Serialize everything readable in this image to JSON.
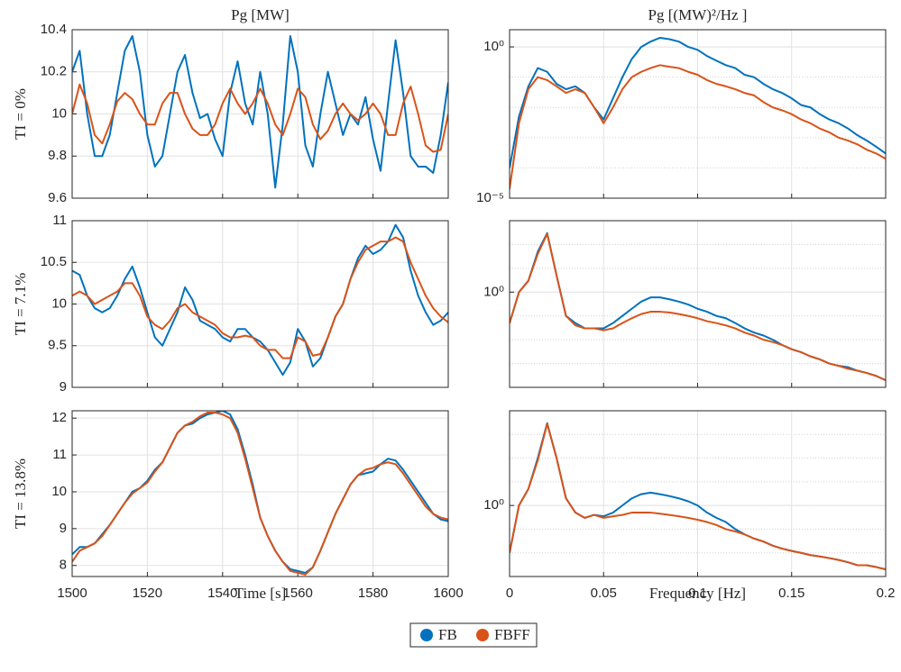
{
  "chart_data": [
    {
      "type": "line",
      "title": "Pg [MW]",
      "ylabel": "TI = 0%",
      "grid": true,
      "x": [
        1500,
        1502,
        1504,
        1506,
        1508,
        1510,
        1512,
        1514,
        1516,
        1518,
        1520,
        1522,
        1524,
        1526,
        1528,
        1530,
        1532,
        1534,
        1536,
        1538,
        1540,
        1542,
        1544,
        1546,
        1548,
        1550,
        1552,
        1554,
        1556,
        1558,
        1560,
        1562,
        1564,
        1566,
        1568,
        1570,
        1572,
        1574,
        1576,
        1578,
        1580,
        1582,
        1584,
        1586,
        1588,
        1590,
        1592,
        1594,
        1596,
        1598,
        1600
      ],
      "xlim": [
        1500,
        1600
      ],
      "xticks": [
        1500,
        1520,
        1540,
        1560,
        1580,
        1600
      ],
      "show_xtick_labels": false,
      "ylim": [
        9.6,
        10.4
      ],
      "yticks": [
        9.6,
        9.8,
        10,
        10.2,
        10.4
      ],
      "series": [
        {
          "color": "#0072bd",
          "values": [
            10.2,
            10.3,
            10.0,
            9.8,
            9.8,
            9.9,
            10.1,
            10.3,
            10.37,
            10.2,
            9.9,
            9.75,
            9.8,
            10.0,
            10.2,
            10.28,
            10.1,
            9.98,
            10.0,
            9.88,
            9.8,
            10.1,
            10.25,
            10.05,
            9.95,
            10.2,
            10.0,
            9.65,
            9.95,
            10.37,
            10.2,
            9.85,
            9.75,
            10.0,
            10.2,
            10.05,
            9.9,
            10.0,
            9.95,
            10.08,
            9.88,
            9.73,
            10.05,
            10.35,
            10.1,
            9.8,
            9.75,
            9.75,
            9.72,
            9.9,
            10.15
          ]
        },
        {
          "color": "#d95319",
          "values": [
            10.0,
            10.14,
            10.05,
            9.9,
            9.86,
            9.95,
            10.06,
            10.1,
            10.07,
            10.0,
            9.95,
            9.95,
            10.05,
            10.1,
            10.1,
            10.0,
            9.93,
            9.9,
            9.9,
            9.95,
            10.05,
            10.12,
            10.05,
            10.0,
            10.05,
            10.12,
            10.05,
            9.95,
            9.9,
            10.0,
            10.12,
            10.08,
            9.95,
            9.88,
            9.92,
            10.0,
            10.05,
            10.0,
            9.97,
            10.0,
            10.05,
            10.0,
            9.9,
            9.9,
            10.05,
            10.13,
            10.0,
            9.85,
            9.82,
            9.83,
            10.0
          ]
        }
      ]
    },
    {
      "type": "line",
      "title": "Pg [(MW)²/Hz ]",
      "yscale": "log",
      "grid": true,
      "minor_grid": true,
      "x": [
        0,
        0.005,
        0.01,
        0.015,
        0.02,
        0.025,
        0.03,
        0.035,
        0.04,
        0.045,
        0.05,
        0.055,
        0.06,
        0.065,
        0.07,
        0.075,
        0.08,
        0.085,
        0.09,
        0.095,
        0.1,
        0.105,
        0.11,
        0.115,
        0.12,
        0.125,
        0.13,
        0.135,
        0.14,
        0.145,
        0.15,
        0.155,
        0.16,
        0.165,
        0.17,
        0.175,
        0.18,
        0.185,
        0.19,
        0.195,
        0.2
      ],
      "xlim": [
        0,
        0.2
      ],
      "xticks": [
        0,
        0.05,
        0.1,
        0.15,
        0.2
      ],
      "show_xtick_labels": false,
      "ylim": [
        1e-05,
        3.7
      ],
      "yticks": [
        {
          "value": 1e-05,
          "label": "10⁻⁵"
        },
        {
          "value": 1,
          "label": "10⁰"
        }
      ],
      "series": [
        {
          "color": "#0072bd",
          "values": [
            0.0001,
            0.005,
            0.05,
            0.2,
            0.15,
            0.06,
            0.04,
            0.05,
            0.03,
            0.01,
            0.004,
            0.02,
            0.1,
            0.4,
            1.0,
            1.5,
            2,
            1.8,
            1.5,
            1.0,
            0.8,
            0.5,
            0.35,
            0.25,
            0.2,
            0.12,
            0.1,
            0.06,
            0.04,
            0.03,
            0.02,
            0.012,
            0.01,
            0.006,
            0.004,
            0.003,
            0.002,
            0.0012,
            0.0008,
            0.0005,
            0.0003
          ]
        },
        {
          "color": "#d95319",
          "values": [
            2e-05,
            0.003,
            0.04,
            0.1,
            0.08,
            0.05,
            0.03,
            0.04,
            0.03,
            0.01,
            0.003,
            0.01,
            0.04,
            0.1,
            0.15,
            0.2,
            0.25,
            0.22,
            0.2,
            0.15,
            0.12,
            0.08,
            0.06,
            0.05,
            0.04,
            0.03,
            0.025,
            0.015,
            0.01,
            0.008,
            0.006,
            0.004,
            0.003,
            0.002,
            0.0015,
            0.001,
            0.0008,
            0.0006,
            0.0004,
            0.0003,
            0.0002
          ]
        }
      ]
    },
    {
      "type": "line",
      "ylabel": "TI = 7.1%",
      "grid": true,
      "x": [
        1500,
        1502,
        1504,
        1506,
        1508,
        1510,
        1512,
        1514,
        1516,
        1518,
        1520,
        1522,
        1524,
        1526,
        1528,
        1530,
        1532,
        1534,
        1536,
        1538,
        1540,
        1542,
        1544,
        1546,
        1548,
        1550,
        1552,
        1554,
        1556,
        1558,
        1560,
        1562,
        1564,
        1566,
        1568,
        1570,
        1572,
        1574,
        1576,
        1578,
        1580,
        1582,
        1584,
        1586,
        1588,
        1590,
        1592,
        1594,
        1596,
        1598,
        1600
      ],
      "xlim": [
        1500,
        1600
      ],
      "xticks": [
        1500,
        1520,
        1540,
        1560,
        1580,
        1600
      ],
      "show_xtick_labels": false,
      "ylim": [
        9,
        11
      ],
      "yticks": [
        9,
        9.5,
        10,
        10.5,
        11
      ],
      "series": [
        {
          "color": "#0072bd",
          "values": [
            10.4,
            10.35,
            10.1,
            9.95,
            9.9,
            9.95,
            10.1,
            10.3,
            10.45,
            10.2,
            9.9,
            9.6,
            9.5,
            9.7,
            9.9,
            10.2,
            10.05,
            9.8,
            9.75,
            9.7,
            9.6,
            9.55,
            9.7,
            9.7,
            9.6,
            9.55,
            9.45,
            9.3,
            9.15,
            9.3,
            9.7,
            9.55,
            9.25,
            9.35,
            9.6,
            9.85,
            10.0,
            10.3,
            10.55,
            10.7,
            10.6,
            10.65,
            10.75,
            10.95,
            10.8,
            10.4,
            10.1,
            9.9,
            9.75,
            9.8,
            9.9
          ]
        },
        {
          "color": "#d95319",
          "values": [
            10.1,
            10.15,
            10.1,
            10.0,
            10.05,
            10.1,
            10.15,
            10.25,
            10.25,
            10.1,
            9.85,
            9.75,
            9.7,
            9.8,
            9.95,
            10.0,
            9.9,
            9.85,
            9.8,
            9.75,
            9.65,
            9.6,
            9.6,
            9.62,
            9.6,
            9.5,
            9.45,
            9.45,
            9.35,
            9.35,
            9.6,
            9.55,
            9.38,
            9.4,
            9.6,
            9.85,
            10.0,
            10.3,
            10.5,
            10.65,
            10.7,
            10.75,
            10.75,
            10.8,
            10.75,
            10.5,
            10.3,
            10.1,
            9.95,
            9.85,
            9.78
          ]
        }
      ]
    },
    {
      "type": "line",
      "yscale": "log",
      "grid": true,
      "minor_grid": true,
      "x": [
        0,
        0.005,
        0.01,
        0.015,
        0.02,
        0.025,
        0.03,
        0.035,
        0.04,
        0.045,
        0.05,
        0.055,
        0.06,
        0.065,
        0.07,
        0.075,
        0.08,
        0.085,
        0.09,
        0.095,
        0.1,
        0.105,
        0.11,
        0.115,
        0.12,
        0.125,
        0.13,
        0.135,
        0.14,
        0.145,
        0.15,
        0.155,
        0.16,
        0.165,
        0.17,
        0.175,
        0.18,
        0.185,
        0.19,
        0.195,
        0.2
      ],
      "xlim": [
        0,
        0.2
      ],
      "xticks": [
        0,
        0.05,
        0.1,
        0.15,
        0.2
      ],
      "show_xtick_labels": false,
      "ylim": [
        0.0001,
        1000
      ],
      "yticks": [
        {
          "value": 1,
          "label": "10⁰"
        }
      ],
      "series": [
        {
          "color": "#0072bd",
          "values": [
            0.05,
            1,
            3,
            50,
            300,
            5,
            0.1,
            0.05,
            0.03,
            0.03,
            0.03,
            0.05,
            0.1,
            0.2,
            0.4,
            0.6,
            0.6,
            0.5,
            0.4,
            0.3,
            0.2,
            0.15,
            0.1,
            0.08,
            0.05,
            0.03,
            0.02,
            0.015,
            0.01,
            0.006,
            0.004,
            0.003,
            0.002,
            0.0015,
            0.001,
            0.0008,
            0.0007,
            0.0005,
            0.0004,
            0.0003,
            0.0002
          ]
        },
        {
          "color": "#d95319",
          "values": [
            0.05,
            1,
            3,
            40,
            280,
            5,
            0.1,
            0.04,
            0.03,
            0.03,
            0.025,
            0.03,
            0.05,
            0.08,
            0.12,
            0.15,
            0.15,
            0.14,
            0.12,
            0.1,
            0.08,
            0.06,
            0.05,
            0.04,
            0.03,
            0.02,
            0.015,
            0.01,
            0.008,
            0.006,
            0.004,
            0.003,
            0.002,
            0.0015,
            0.001,
            0.0008,
            0.0006,
            0.0005,
            0.0004,
            0.0003,
            0.0002
          ]
        }
      ]
    },
    {
      "type": "line",
      "ylabel": "TI = 13.8%",
      "xlabel": "Time [s]",
      "grid": true,
      "x": [
        1500,
        1502,
        1504,
        1506,
        1508,
        1510,
        1512,
        1514,
        1516,
        1518,
        1520,
        1522,
        1524,
        1526,
        1528,
        1530,
        1532,
        1534,
        1536,
        1538,
        1540,
        1542,
        1544,
        1546,
        1548,
        1550,
        1552,
        1554,
        1556,
        1558,
        1560,
        1562,
        1564,
        1566,
        1568,
        1570,
        1572,
        1574,
        1576,
        1578,
        1580,
        1582,
        1584,
        1586,
        1588,
        1590,
        1592,
        1594,
        1596,
        1598,
        1600
      ],
      "xlim": [
        1500,
        1600
      ],
      "xticks": [
        1500,
        1520,
        1540,
        1560,
        1580,
        1600
      ],
      "show_xtick_labels": true,
      "ylim": [
        7.7,
        12.2
      ],
      "yticks": [
        8,
        9,
        10,
        11,
        12
      ],
      "series": [
        {
          "color": "#0072bd",
          "values": [
            8.3,
            8.5,
            8.5,
            8.6,
            8.85,
            9.1,
            9.4,
            9.7,
            10.0,
            10.1,
            10.3,
            10.6,
            10.8,
            11.2,
            11.6,
            11.8,
            11.85,
            12.0,
            12.1,
            12.15,
            12.2,
            12.1,
            11.7,
            11.0,
            10.2,
            9.3,
            8.8,
            8.4,
            8.1,
            7.9,
            7.85,
            7.8,
            7.95,
            8.4,
            8.9,
            9.4,
            9.8,
            10.2,
            10.45,
            10.5,
            10.55,
            10.75,
            10.9,
            10.85,
            10.6,
            10.3,
            10.0,
            9.7,
            9.4,
            9.25,
            9.2
          ]
        },
        {
          "color": "#d95319",
          "values": [
            8.1,
            8.4,
            8.5,
            8.6,
            8.8,
            9.1,
            9.4,
            9.7,
            9.95,
            10.1,
            10.25,
            10.55,
            10.8,
            11.2,
            11.6,
            11.8,
            11.9,
            12.05,
            12.15,
            12.15,
            12.1,
            12.0,
            11.6,
            10.9,
            10.1,
            9.3,
            8.8,
            8.4,
            8.1,
            7.85,
            7.8,
            7.75,
            7.95,
            8.4,
            8.9,
            9.4,
            9.8,
            10.2,
            10.45,
            10.6,
            10.65,
            10.75,
            10.8,
            10.75,
            10.5,
            10.2,
            9.9,
            9.6,
            9.4,
            9.3,
            9.25
          ]
        }
      ]
    },
    {
      "type": "line",
      "xlabel": "Frequency [Hz]",
      "yscale": "log",
      "grid": true,
      "minor_grid": true,
      "x": [
        0,
        0.005,
        0.01,
        0.015,
        0.02,
        0.025,
        0.03,
        0.035,
        0.04,
        0.045,
        0.05,
        0.055,
        0.06,
        0.065,
        0.07,
        0.075,
        0.08,
        0.085,
        0.09,
        0.095,
        0.1,
        0.105,
        0.11,
        0.115,
        0.12,
        0.125,
        0.13,
        0.135,
        0.14,
        0.145,
        0.15,
        0.155,
        0.16,
        0.165,
        0.17,
        0.175,
        0.18,
        0.185,
        0.19,
        0.195,
        0.2
      ],
      "xlim": [
        0,
        0.2
      ],
      "xticks": [
        0,
        0.05,
        0.1,
        0.15,
        0.2
      ],
      "show_xtick_labels": true,
      "ylim": [
        0.001,
        10000
      ],
      "yticks": [
        {
          "value": 1,
          "label": "10⁰"
        }
      ],
      "series": [
        {
          "color": "#0072bd",
          "values": [
            0.01,
            1,
            5,
            100,
            3000,
            100,
            2,
            0.5,
            0.3,
            0.4,
            0.35,
            0.5,
            1,
            2,
            3,
            3.5,
            3,
            2.5,
            2,
            1.5,
            1,
            0.5,
            0.3,
            0.2,
            0.1,
            0.06,
            0.04,
            0.03,
            0.02,
            0.015,
            0.012,
            0.01,
            0.008,
            0.007,
            0.006,
            0.005,
            0.004,
            0.003,
            0.003,
            0.0025,
            0.002
          ]
        },
        {
          "color": "#d95319",
          "values": [
            0.01,
            1,
            5,
            80,
            2800,
            100,
            2,
            0.5,
            0.3,
            0.4,
            0.3,
            0.35,
            0.4,
            0.5,
            0.5,
            0.5,
            0.45,
            0.4,
            0.35,
            0.3,
            0.25,
            0.2,
            0.15,
            0.1,
            0.08,
            0.06,
            0.04,
            0.03,
            0.02,
            0.015,
            0.012,
            0.01,
            0.008,
            0.007,
            0.006,
            0.005,
            0.004,
            0.003,
            0.003,
            0.0025,
            0.002
          ]
        }
      ]
    }
  ],
  "legend": {
    "entries": [
      "FB",
      "FBFF"
    ],
    "position": "bottom"
  }
}
